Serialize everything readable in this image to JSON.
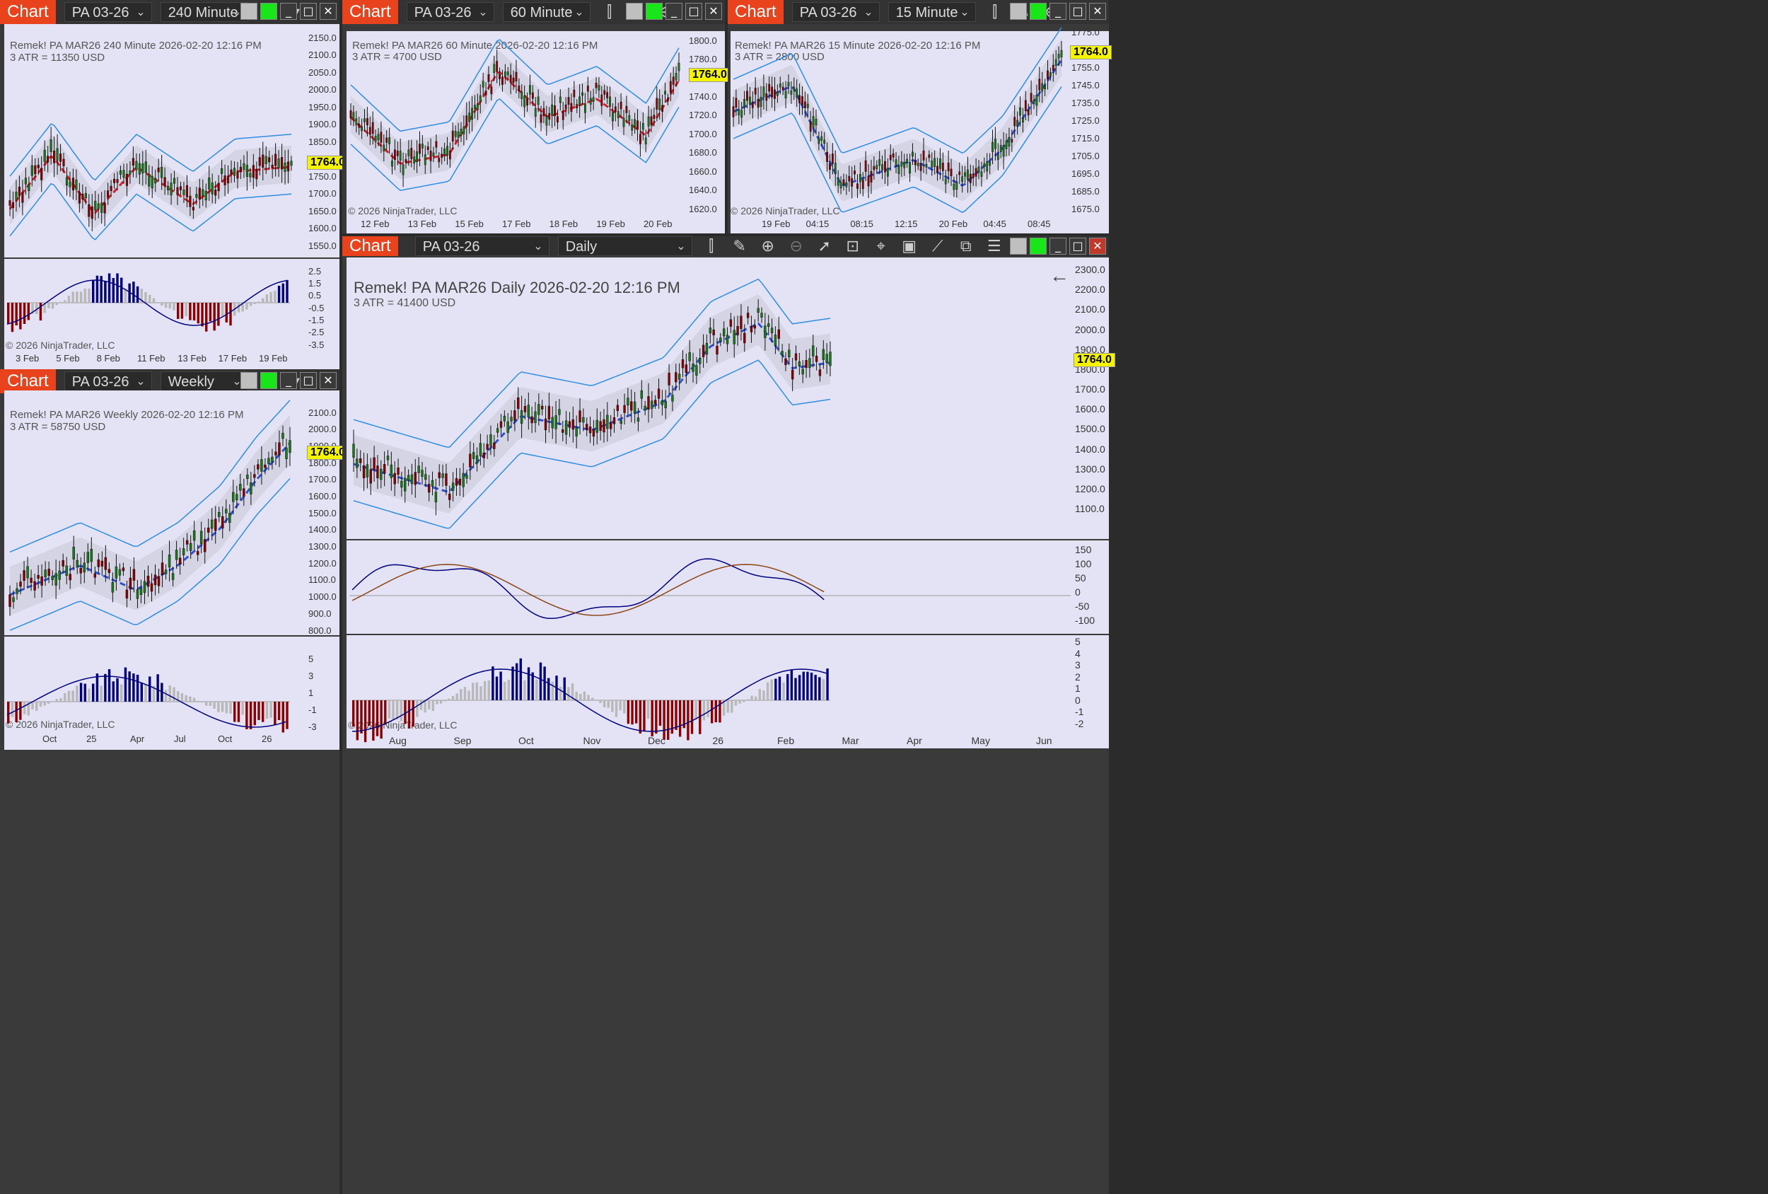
{
  "app": {
    "tab_label": "Chart",
    "instrument": "PA 03-26",
    "copyright": "© 2026 NinjaTrader, LLC",
    "last_price": "1764.0"
  },
  "charts": {
    "tl": {
      "interval": "240 Minute",
      "title": "Remek!  PA MAR26  240 Minute  2026-02-20 12:16 PM",
      "atr": "3 ATR = 11350 USD",
      "y_ticks": [
        "2150.0",
        "2100.0",
        "2050.0",
        "2000.0",
        "1950.0",
        "1900.0",
        "1850.0",
        "1800.0",
        "1750.0",
        "1700.0",
        "1650.0",
        "1600.0",
        "1550.0"
      ],
      "osc_ticks": [
        "2.5",
        "1.5",
        "0.5",
        "-0.5",
        "-1.5",
        "-2.5",
        "-3.5"
      ],
      "x_ticks": [
        "3 Feb",
        "5 Feb",
        "8 Feb",
        "11 Feb",
        "13 Feb",
        "17 Feb",
        "19 Feb"
      ]
    },
    "tm": {
      "interval": "60 Minute",
      "title": "Remek!  PA MAR26  60 Minute  2026-02-20 12:16 PM",
      "atr": "3 ATR = 4700 USD",
      "y_ticks": [
        "1800.0",
        "1780.0",
        "1760.0",
        "1740.0",
        "1720.0",
        "1700.0",
        "1680.0",
        "1660.0",
        "1640.0",
        "1620.0"
      ],
      "x_ticks": [
        "12 Feb",
        "13 Feb",
        "15 Feb",
        "17 Feb",
        "18 Feb",
        "19 Feb",
        "20 Feb"
      ]
    },
    "tr": {
      "interval": "15 Minute",
      "title": "Remek!  PA MAR26  15 Minute  2026-02-20 12:16 PM",
      "atr": "3 ATR = 2800 USD",
      "y_ticks": [
        "1775.0",
        "1765.0",
        "1755.0",
        "1745.0",
        "1735.0",
        "1725.0",
        "1715.0",
        "1705.0",
        "1695.0",
        "1685.0",
        "1675.0"
      ],
      "x_ticks": [
        "19 Feb",
        "04:15",
        "08:15",
        "12:15",
        "20 Feb",
        "04:45",
        "08:45"
      ]
    },
    "bl": {
      "interval": "Weekly",
      "title": "Remek!  PA MAR26  Weekly  2026-02-20 12:16 PM",
      "atr": "3 ATR = 58750 USD",
      "y_ticks": [
        "2100.0",
        "2000.0",
        "1900.0",
        "1800.0",
        "1700.0",
        "1600.0",
        "1500.0",
        "1400.0",
        "1300.0",
        "1200.0",
        "1100.0",
        "1000.0",
        "900.0",
        "800.0"
      ],
      "osc_ticks": [
        "5",
        "3",
        "1",
        "-1",
        "-3"
      ],
      "x_ticks": [
        "Oct",
        "25",
        "Apr",
        "Jul",
        "Oct",
        "26"
      ]
    },
    "main": {
      "interval": "Daily",
      "title": "Remek!  PA MAR26  Daily  2026-02-20 12:16 PM",
      "atr": "3 ATR = 41400 USD",
      "y_ticks": [
        "2300.0",
        "2200.0",
        "2100.0",
        "2000.0",
        "1900.0",
        "1800.0",
        "1700.0",
        "1600.0",
        "1500.0",
        "1400.0",
        "1300.0",
        "1200.0",
        "1100.0"
      ],
      "cci_ticks": [
        "150",
        "100",
        "50",
        "0",
        "-50",
        "-100"
      ],
      "osc_ticks": [
        "5",
        "4",
        "3",
        "2",
        "1",
        "0",
        "-1",
        "-2"
      ],
      "x_ticks": [
        "Aug",
        "Sep",
        "Oct",
        "Nov",
        "Dec",
        "26",
        "Feb",
        "Mar",
        "Apr",
        "May",
        "Jun"
      ]
    }
  },
  "colors": {
    "up": "#1a7a1a",
    "down": "#8b0000",
    "blue_line": "#2f8ee0",
    "navy": "#000080",
    "red_dash": "#d0202a",
    "blue_dash": "#3050d0",
    "yellow": "#f4f400",
    "band": "#c8c8dc"
  }
}
